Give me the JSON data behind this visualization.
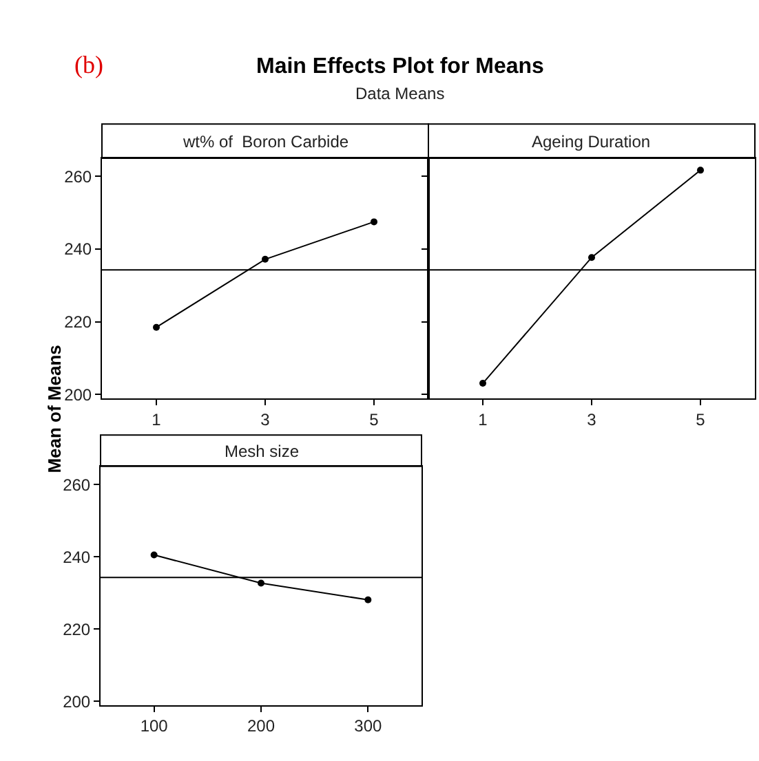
{
  "chart_data": [
    {
      "type": "line",
      "title": "wt% of  Boron Carbide",
      "ylabel": "Mean of Means",
      "annotations": [
        "(b)",
        "Main Effects Plot for Means",
        "Data Means"
      ],
      "categories": [
        "1",
        "3",
        "5"
      ],
      "values": [
        218.5,
        237.2,
        247.5
      ],
      "color": "#000000",
      "marker": "circle",
      "line_style": "solid",
      "ylim": [
        199,
        265
      ],
      "yticks": [
        200,
        220,
        240,
        260
      ],
      "grid": false,
      "ref_lines": [
        {
          "axis": "y",
          "value": 234.3,
          "color": "#000000"
        }
      ]
    },
    {
      "type": "line",
      "title": "Ageing Duration",
      "categories": [
        "1",
        "3",
        "5"
      ],
      "values": [
        203.1,
        237.7,
        261.7
      ],
      "color": "#000000",
      "marker": "circle",
      "line_style": "solid",
      "ylim": [
        199,
        265
      ],
      "yticks": [
        200,
        220,
        240,
        260
      ],
      "grid": false,
      "tick_labels": "x",
      "ref_lines": [
        {
          "axis": "y",
          "value": 234.3,
          "color": "#000000"
        }
      ]
    },
    {
      "type": "line",
      "title": "Mesh size",
      "categories": [
        "100",
        "200",
        "300"
      ],
      "values": [
        240.5,
        232.7,
        228.1
      ],
      "color": "#000000",
      "marker": "circle",
      "line_style": "solid",
      "ylim": [
        199,
        265
      ],
      "yticks": [
        200,
        220,
        240,
        260
      ],
      "grid": false,
      "ref_lines": [
        {
          "axis": "y",
          "value": 234.3,
          "color": "#000000"
        }
      ]
    }
  ]
}
